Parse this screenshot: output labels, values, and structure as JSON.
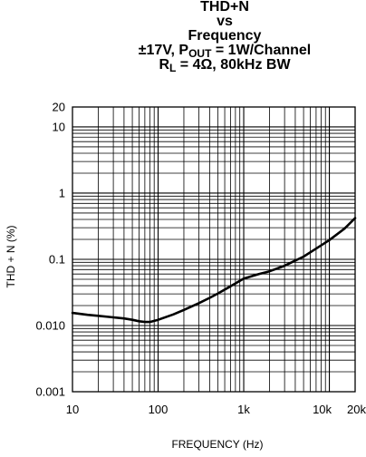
{
  "chart_data": {
    "type": "line",
    "title_lines": {
      "line1": "THD+N",
      "line2": "vs",
      "line3": "Frequency",
      "line4_prefix": "±17V, P",
      "line4_sub": "OUT",
      "line4_suffix": " = 1W/Channel",
      "line5_prefix": "R",
      "line5_sub": "L",
      "line5_suffix": " = 4Ω, 80kHz BW"
    },
    "xlabel": "FREQUENCY (Hz)",
    "ylabel": "THD + N (%)",
    "x_scale": "log",
    "y_scale": "log",
    "xlim": [
      10,
      20000
    ],
    "ylim": [
      0.001,
      20
    ],
    "x_ticks": [
      {
        "value": 10,
        "label": "10"
      },
      {
        "value": 100,
        "label": "100"
      },
      {
        "value": 1000,
        "label": "1k"
      },
      {
        "value": 10000,
        "label": "10k"
      },
      {
        "value": 20000,
        "label": "20k"
      }
    ],
    "y_ticks": [
      {
        "value": 20,
        "label": "20"
      },
      {
        "value": 10,
        "label": "10"
      },
      {
        "value": 1,
        "label": "1"
      },
      {
        "value": 0.1,
        "label": "0.1"
      },
      {
        "value": 0.01,
        "label": "0.010"
      },
      {
        "value": 0.001,
        "label": "0.001"
      }
    ],
    "grid": true,
    "series": [
      {
        "x": [
          10,
          15,
          20,
          30,
          40,
          50,
          60,
          70,
          80,
          100,
          150,
          200,
          300,
          400,
          500,
          700,
          1000,
          1500,
          2000,
          3000,
          5000,
          7000,
          10000,
          15000,
          20000
        ],
        "y": [
          0.0155,
          0.0145,
          0.014,
          0.0133,
          0.0128,
          0.0122,
          0.0116,
          0.0113,
          0.0113,
          0.0122,
          0.0147,
          0.0172,
          0.0218,
          0.0262,
          0.0305,
          0.039,
          0.051,
          0.06,
          0.066,
          0.08,
          0.11,
          0.145,
          0.195,
          0.29,
          0.42
        ]
      }
    ]
  }
}
